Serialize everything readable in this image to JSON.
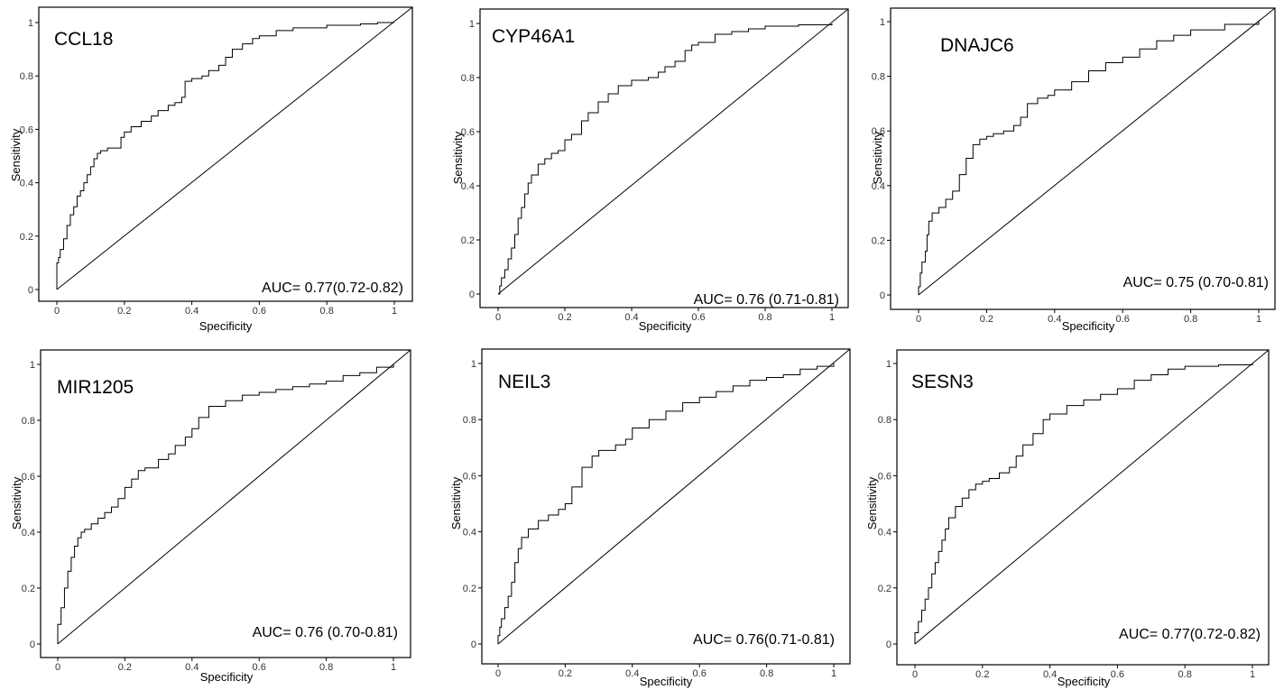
{
  "chart_data": [
    {
      "type": "line",
      "title": "CCL18",
      "annotation": "AUC= 0.77(0.72-0.82)",
      "xlabel": "Specificity",
      "ylabel": "Sensitivity",
      "xlim": [
        0,
        1
      ],
      "ylim": [
        0,
        1
      ],
      "xticks": [
        "0",
        "0.2",
        "0.4",
        "0.6",
        "0.8",
        "1"
      ],
      "yticks": [
        "0",
        "0.2",
        "0.4",
        "0.6",
        "0.8",
        "1"
      ],
      "reference_line": "diagonal",
      "x": [
        0,
        0,
        0.005,
        0.01,
        0.02,
        0.03,
        0.04,
        0.05,
        0.06,
        0.07,
        0.08,
        0.09,
        0.1,
        0.11,
        0.12,
        0.13,
        0.15,
        0.19,
        0.2,
        0.22,
        0.25,
        0.28,
        0.3,
        0.33,
        0.35,
        0.37,
        0.38,
        0.4,
        0.43,
        0.45,
        0.48,
        0.5,
        0.52,
        0.55,
        0.58,
        0.6,
        0.65,
        0.7,
        0.8,
        0.9,
        0.95,
        1
      ],
      "y": [
        0,
        0.1,
        0.12,
        0.15,
        0.19,
        0.24,
        0.28,
        0.31,
        0.35,
        0.37,
        0.4,
        0.43,
        0.46,
        0.49,
        0.51,
        0.52,
        0.53,
        0.57,
        0.59,
        0.61,
        0.63,
        0.65,
        0.67,
        0.69,
        0.7,
        0.72,
        0.78,
        0.79,
        0.8,
        0.82,
        0.84,
        0.87,
        0.9,
        0.92,
        0.94,
        0.95,
        0.97,
        0.98,
        0.99,
        0.995,
        1,
        1
      ]
    },
    {
      "type": "line",
      "title": "CYP46A1",
      "annotation": "AUC= 0.76 (0.71-0.81)",
      "xlabel": "Specificity",
      "ylabel": "Sensitivity",
      "xlim": [
        0,
        1
      ],
      "ylim": [
        0,
        1
      ],
      "xticks": [
        "0",
        "0.2",
        "0.4",
        "0.6",
        "0.8",
        "1"
      ],
      "yticks": [
        "0",
        "0.2",
        "0.4",
        "0.6",
        "0.8",
        "1"
      ],
      "reference_line": "diagonal",
      "x": [
        0,
        0.005,
        0.01,
        0.02,
        0.03,
        0.04,
        0.05,
        0.06,
        0.07,
        0.08,
        0.09,
        0.1,
        0.12,
        0.14,
        0.16,
        0.18,
        0.2,
        0.22,
        0.25,
        0.27,
        0.3,
        0.33,
        0.36,
        0.4,
        0.45,
        0.48,
        0.5,
        0.53,
        0.56,
        0.58,
        0.6,
        0.65,
        0.7,
        0.75,
        0.8,
        0.9,
        1
      ],
      "y": [
        0,
        0.03,
        0.06,
        0.09,
        0.13,
        0.17,
        0.22,
        0.28,
        0.32,
        0.37,
        0.41,
        0.44,
        0.48,
        0.5,
        0.52,
        0.53,
        0.57,
        0.59,
        0.64,
        0.67,
        0.71,
        0.74,
        0.77,
        0.79,
        0.8,
        0.82,
        0.84,
        0.86,
        0.9,
        0.92,
        0.93,
        0.96,
        0.97,
        0.98,
        0.99,
        0.995,
        1
      ]
    },
    {
      "type": "line",
      "title": "DNAJC6",
      "annotation": "AUC= 0.75 (0.70-0.81)",
      "xlabel": "Specificity",
      "ylabel": "Sensitivity",
      "xlim": [
        0,
        1
      ],
      "ylim": [
        0,
        1
      ],
      "xticks": [
        "0",
        "0.2",
        "0.4",
        "0.6",
        "0.8",
        "1"
      ],
      "yticks": [
        "0",
        "0.2",
        "0.4",
        "0.6",
        "0.8",
        "1"
      ],
      "reference_line": "diagonal",
      "x": [
        0,
        0,
        0.005,
        0.01,
        0.02,
        0.025,
        0.03,
        0.04,
        0.06,
        0.08,
        0.1,
        0.12,
        0.14,
        0.16,
        0.18,
        0.2,
        0.22,
        0.25,
        0.28,
        0.3,
        0.32,
        0.35,
        0.38,
        0.4,
        0.45,
        0.5,
        0.55,
        0.6,
        0.65,
        0.7,
        0.75,
        0.8,
        0.9,
        1
      ],
      "y": [
        0,
        0.03,
        0.08,
        0.12,
        0.16,
        0.22,
        0.27,
        0.3,
        0.32,
        0.35,
        0.38,
        0.44,
        0.5,
        0.55,
        0.57,
        0.58,
        0.59,
        0.6,
        0.62,
        0.65,
        0.7,
        0.72,
        0.73,
        0.75,
        0.78,
        0.82,
        0.85,
        0.87,
        0.9,
        0.93,
        0.95,
        0.97,
        0.99,
        1
      ]
    },
    {
      "type": "line",
      "title": "MIR1205",
      "annotation": "AUC= 0.76 (0.70-0.81)",
      "xlabel": "Specificity",
      "ylabel": "Sensitivity",
      "xlim": [
        0,
        1
      ],
      "ylim": [
        0,
        1
      ],
      "xticks": [
        "0",
        "0.2",
        "0.4",
        "0.6",
        "0.8",
        "1"
      ],
      "yticks": [
        "0",
        "0.2",
        "0.4",
        "0.6",
        "0.8",
        "1"
      ],
      "reference_line": "diagonal",
      "x": [
        0,
        0,
        0.01,
        0.02,
        0.03,
        0.04,
        0.05,
        0.06,
        0.07,
        0.08,
        0.1,
        0.12,
        0.14,
        0.16,
        0.18,
        0.2,
        0.22,
        0.24,
        0.26,
        0.3,
        0.33,
        0.35,
        0.38,
        0.4,
        0.42,
        0.45,
        0.5,
        0.55,
        0.6,
        0.65,
        0.7,
        0.75,
        0.8,
        0.85,
        0.9,
        0.95,
        1
      ],
      "y": [
        0,
        0.07,
        0.13,
        0.2,
        0.26,
        0.31,
        0.35,
        0.38,
        0.4,
        0.41,
        0.43,
        0.45,
        0.47,
        0.49,
        0.52,
        0.56,
        0.59,
        0.62,
        0.63,
        0.66,
        0.68,
        0.71,
        0.74,
        0.77,
        0.81,
        0.85,
        0.87,
        0.89,
        0.9,
        0.91,
        0.92,
        0.93,
        0.94,
        0.96,
        0.97,
        0.99,
        1
      ]
    },
    {
      "type": "line",
      "title": "NEIL3",
      "annotation": "AUC= 0.76(0.71-0.81)",
      "xlabel": "Specificity",
      "ylabel": "Sensitivity",
      "xlim": [
        0,
        1
      ],
      "ylim": [
        0,
        1
      ],
      "xticks": [
        "0",
        "0.2",
        "0.4",
        "0.6",
        "0.8",
        "1"
      ],
      "yticks": [
        "0",
        "0.2",
        "0.4",
        "0.6",
        "0.8",
        "1"
      ],
      "reference_line": "diagonal",
      "x": [
        0,
        0,
        0.005,
        0.01,
        0.02,
        0.03,
        0.04,
        0.05,
        0.06,
        0.07,
        0.09,
        0.12,
        0.15,
        0.18,
        0.2,
        0.22,
        0.25,
        0.28,
        0.3,
        0.35,
        0.38,
        0.4,
        0.45,
        0.5,
        0.55,
        0.6,
        0.65,
        0.7,
        0.75,
        0.8,
        0.85,
        0.9,
        0.95,
        1
      ],
      "y": [
        0,
        0.03,
        0.06,
        0.09,
        0.13,
        0.17,
        0.22,
        0.29,
        0.34,
        0.38,
        0.41,
        0.44,
        0.46,
        0.48,
        0.5,
        0.56,
        0.63,
        0.67,
        0.69,
        0.71,
        0.73,
        0.77,
        0.8,
        0.83,
        0.86,
        0.88,
        0.9,
        0.92,
        0.94,
        0.95,
        0.96,
        0.98,
        0.99,
        1
      ]
    },
    {
      "type": "line",
      "title": "SESN3",
      "annotation": "AUC= 0.77(0.72-0.82)",
      "xlabel": "Specificity",
      "ylabel": "Sensitivity",
      "xlim": [
        0,
        1
      ],
      "ylim": [
        0,
        1
      ],
      "xticks": [
        "0",
        "0.2",
        "0.4",
        "0.6",
        "0.8",
        "1"
      ],
      "yticks": [
        "0",
        "0.2",
        "0.4",
        "0.6",
        "0.8",
        "1"
      ],
      "reference_line": "diagonal",
      "x": [
        0,
        0,
        0.01,
        0.02,
        0.03,
        0.04,
        0.05,
        0.06,
        0.07,
        0.08,
        0.09,
        0.1,
        0.12,
        0.14,
        0.16,
        0.18,
        0.2,
        0.22,
        0.25,
        0.28,
        0.3,
        0.32,
        0.35,
        0.38,
        0.4,
        0.45,
        0.5,
        0.55,
        0.6,
        0.65,
        0.7,
        0.75,
        0.8,
        0.9,
        1
      ],
      "y": [
        0,
        0.04,
        0.08,
        0.12,
        0.16,
        0.2,
        0.25,
        0.29,
        0.33,
        0.37,
        0.41,
        0.45,
        0.49,
        0.52,
        0.55,
        0.57,
        0.58,
        0.59,
        0.61,
        0.63,
        0.67,
        0.71,
        0.75,
        0.8,
        0.82,
        0.85,
        0.87,
        0.89,
        0.91,
        0.94,
        0.96,
        0.98,
        0.99,
        0.995,
        1
      ]
    }
  ]
}
